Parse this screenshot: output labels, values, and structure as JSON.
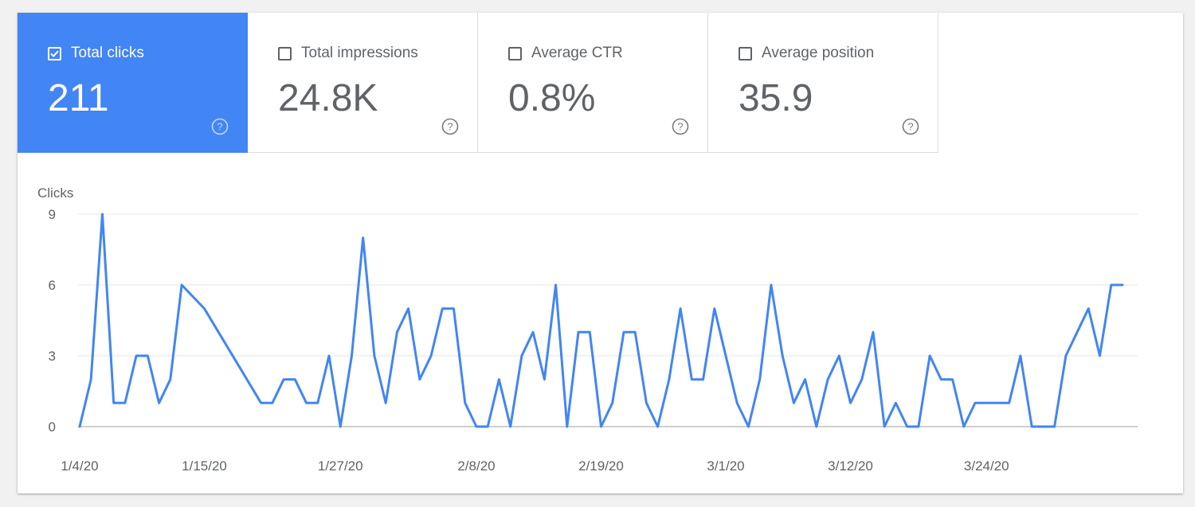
{
  "metrics": [
    {
      "label": "Total clicks",
      "value": "211",
      "checked": true,
      "help_icon": "help-circle-icon"
    },
    {
      "label": "Total impressions",
      "value": "24.8K",
      "checked": false,
      "help_icon": "help-circle-icon"
    },
    {
      "label": "Average CTR",
      "value": "0.8%",
      "checked": false,
      "help_icon": "help-circle-icon"
    },
    {
      "label": "Average position",
      "value": "35.9",
      "checked": false,
      "help_icon": "help-circle-icon"
    }
  ],
  "colors": {
    "accent": "#4285f4",
    "line": "#4285f4",
    "grid": "#e6e6e6",
    "text": "#5f6368"
  },
  "chart_data": {
    "type": "line",
    "title": "",
    "ylabel": "Clicks",
    "xlabel": "",
    "ylim": [
      0,
      9
    ],
    "yticks": [
      "0",
      "3",
      "6",
      "9"
    ],
    "xticks": [
      {
        "label": "1/4/20",
        "x": "2020-01-04"
      },
      {
        "label": "1/15/20",
        "x": "2020-01-15"
      },
      {
        "label": "1/27/20",
        "x": "2020-01-27"
      },
      {
        "label": "2/8/20",
        "x": "2020-02-08"
      },
      {
        "label": "2/19/20",
        "x": "2020-02-19"
      },
      {
        "label": "3/1/20",
        "x": "2020-03-01"
      },
      {
        "label": "3/12/20",
        "x": "2020-03-12"
      },
      {
        "label": "3/24/20",
        "x": "2020-03-24"
      }
    ],
    "grid": true,
    "series": [
      {
        "x": [
          "2020-01-04",
          "2020-01-05",
          "2020-01-06",
          "2020-01-07",
          "2020-01-08",
          "2020-01-09",
          "2020-01-10",
          "2020-01-11",
          "2020-01-12",
          "2020-01-13",
          "2020-01-15",
          "2020-01-20",
          "2020-01-21",
          "2020-01-22",
          "2020-01-23",
          "2020-01-24",
          "2020-01-25",
          "2020-01-26",
          "2020-01-27",
          "2020-01-28",
          "2020-01-29",
          "2020-01-30",
          "2020-01-31",
          "2020-02-01",
          "2020-02-02",
          "2020-02-03",
          "2020-02-04",
          "2020-02-05",
          "2020-02-06",
          "2020-02-07",
          "2020-02-08",
          "2020-02-09",
          "2020-02-10",
          "2020-02-11",
          "2020-02-12",
          "2020-02-13",
          "2020-02-14",
          "2020-02-15",
          "2020-02-16",
          "2020-02-17",
          "2020-02-18",
          "2020-02-19",
          "2020-02-20",
          "2020-02-21",
          "2020-02-22",
          "2020-02-23",
          "2020-02-24",
          "2020-02-25",
          "2020-02-26",
          "2020-02-27",
          "2020-02-28",
          "2020-02-29",
          "2020-03-01",
          "2020-03-02",
          "2020-03-03",
          "2020-03-04",
          "2020-03-05",
          "2020-03-06",
          "2020-03-07",
          "2020-03-08",
          "2020-03-09",
          "2020-03-10",
          "2020-03-11",
          "2020-03-12",
          "2020-03-13",
          "2020-03-14",
          "2020-03-15",
          "2020-03-16",
          "2020-03-17",
          "2020-03-18",
          "2020-03-19",
          "2020-03-20",
          "2020-03-21",
          "2020-03-22",
          "2020-03-23",
          "2020-03-24",
          "2020-03-25",
          "2020-03-26",
          "2020-03-27",
          "2020-03-28",
          "2020-03-29",
          "2020-03-30",
          "2020-03-31",
          "2020-04-01",
          "2020-04-02",
          "2020-04-03",
          "2020-04-04",
          "2020-04-05"
        ],
        "values": [
          0,
          2,
          9,
          1,
          1,
          3,
          3,
          1,
          2,
          6,
          5,
          1,
          1,
          2,
          2,
          1,
          1,
          3,
          0,
          3,
          8,
          3,
          1,
          4,
          5,
          2,
          3,
          5,
          5,
          1,
          0,
          0,
          2,
          0,
          3,
          4,
          2,
          6,
          0,
          4,
          4,
          0,
          1,
          4,
          4,
          1,
          0,
          2,
          5,
          2,
          2,
          5,
          3,
          1,
          0,
          2,
          6,
          3,
          1,
          2,
          0,
          2,
          3,
          1,
          2,
          4,
          0,
          1,
          0,
          0,
          3,
          2,
          2,
          0,
          1,
          1,
          1,
          1,
          3,
          0,
          0,
          0,
          3,
          4,
          5,
          3,
          6,
          6
        ]
      }
    ]
  }
}
